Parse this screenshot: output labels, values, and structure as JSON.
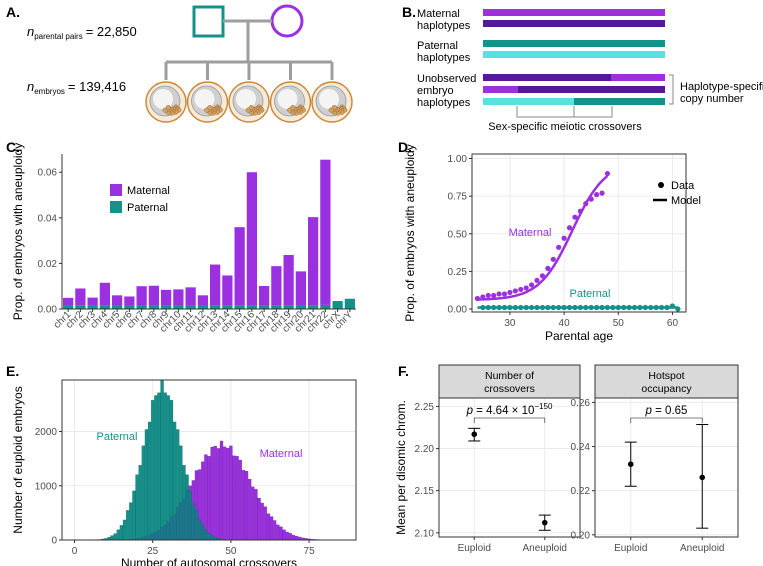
{
  "colors": {
    "maternal": "#9b30e0",
    "maternal_dark": "#55189a",
    "paternal": "#14918a",
    "paternal_light": "#58e1e1",
    "axis": "#333333",
    "grid": "#ebebeb",
    "facet": "#d9d9d9",
    "ped_line": "#9e9e9e"
  },
  "panelA": {
    "letter": "A.",
    "parental_pairs": {
      "n": "n",
      "sub": "parental pairs",
      "value": "= 22,850"
    },
    "embryos": {
      "n": "n",
      "sub": "embryos",
      "value": "= 139,416"
    },
    "embryo_count": 5
  },
  "panelB": {
    "letter": "B.",
    "maternal_label": [
      "Maternal",
      "haplotypes"
    ],
    "paternal_label": [
      "Paternal",
      "haplotypes"
    ],
    "embryo_label": [
      "Unobserved",
      "embryo",
      "haplotypes"
    ],
    "copy_number_label": [
      "Haplotype-specific",
      "copy number"
    ],
    "crossover_label": "Sex-specific meiotic crossovers"
  },
  "chart_data": [
    {
      "panel": "C.",
      "type": "bar",
      "ylabel": "Prop. of embryos with aneuploidy",
      "ylim": [
        0,
        0.068
      ],
      "yticks": [
        0.0,
        0.02,
        0.04,
        0.06
      ],
      "ytick_labels": [
        "0.00",
        "0.02",
        "0.04",
        "0.06"
      ],
      "legend": [
        "Maternal",
        "Paternal"
      ],
      "legend_position": "top-left",
      "categories": [
        "chr1",
        "chr2",
        "chr3",
        "chr4",
        "chr5",
        "chr6",
        "chr7",
        "chr8",
        "chr9",
        "chr10",
        "chr11",
        "chr12",
        "chr13",
        "chr14",
        "chr15",
        "chr16",
        "chr17",
        "chr18",
        "chr19",
        "chr20",
        "chr21",
        "chr22",
        "chrX",
        "chrY"
      ],
      "series": [
        {
          "name": "Paternal",
          "values": [
            0.0015,
            0.0016,
            0.0015,
            0.0016,
            0.0015,
            0.0015,
            0.0015,
            0.0015,
            0.0015,
            0.0015,
            0.0015,
            0.0015,
            0.0016,
            0.0016,
            0.0016,
            0.0017,
            0.0015,
            0.0016,
            0.0016,
            0.0015,
            0.0017,
            0.0018,
            0.0035,
            0.0045
          ]
        },
        {
          "name": "Maternal",
          "values": [
            0.0034,
            0.0074,
            0.0035,
            0.0099,
            0.0045,
            0.004,
            0.0085,
            0.0087,
            0.0069,
            0.0071,
            0.008,
            0.0045,
            0.0179,
            0.0131,
            0.0343,
            0.0583,
            0.0086,
            0.0172,
            0.0221,
            0.015,
            0.0386,
            0.0637,
            0.0,
            0.0
          ]
        }
      ]
    },
    {
      "panel": "D.",
      "type": "scatter",
      "xlabel": "Parental age",
      "ylabel": "Prop. of embryos with aneuploidy",
      "xlim": [
        23,
        62.5
      ],
      "ylim": [
        -0.02,
        1.03
      ],
      "xticks": [
        30,
        40,
        50,
        60
      ],
      "yticks": [
        0.0,
        0.25,
        0.5,
        0.75,
        1.0
      ],
      "ytick_labels": [
        "0.00",
        "0.25",
        "0.50",
        "0.75",
        "1.00"
      ],
      "legend": [
        "Data",
        "Model"
      ],
      "series_labels": [
        "Maternal",
        "Paternal"
      ],
      "maternal_points": [
        [
          24,
          0.07
        ],
        [
          25,
          0.08
        ],
        [
          26,
          0.09
        ],
        [
          27,
          0.09
        ],
        [
          28,
          0.1
        ],
        [
          29,
          0.1
        ],
        [
          30,
          0.11
        ],
        [
          31,
          0.12
        ],
        [
          32,
          0.13
        ],
        [
          33,
          0.14
        ],
        [
          34,
          0.16
        ],
        [
          35,
          0.19
        ],
        [
          36,
          0.22
        ],
        [
          37,
          0.27
        ],
        [
          38,
          0.33
        ],
        [
          39,
          0.41
        ],
        [
          40,
          0.47
        ],
        [
          41,
          0.54
        ],
        [
          42,
          0.61
        ],
        [
          43,
          0.65
        ],
        [
          44,
          0.7
        ],
        [
          45,
          0.73
        ],
        [
          46,
          0.76
        ],
        [
          47,
          0.77
        ],
        [
          48,
          0.9
        ]
      ],
      "maternal_model": {
        "L": 0.98,
        "k": 0.33,
        "x0": 41.5,
        "base": 0.06,
        "x_range": [
          24,
          48
        ]
      },
      "paternal_points": [
        [
          25,
          0.01
        ],
        [
          26,
          0.01
        ],
        [
          27,
          0.01
        ],
        [
          28,
          0.01
        ],
        [
          29,
          0.01
        ],
        [
          30,
          0.01
        ],
        [
          31,
          0.01
        ],
        [
          32,
          0.01
        ],
        [
          33,
          0.01
        ],
        [
          34,
          0.01
        ],
        [
          35,
          0.01
        ],
        [
          36,
          0.01
        ],
        [
          37,
          0.01
        ],
        [
          38,
          0.01
        ],
        [
          39,
          0.01
        ],
        [
          40,
          0.01
        ],
        [
          41,
          0.01
        ],
        [
          42,
          0.01
        ],
        [
          43,
          0.01
        ],
        [
          44,
          0.01
        ],
        [
          45,
          0.01
        ],
        [
          46,
          0.01
        ],
        [
          47,
          0.01
        ],
        [
          48,
          0.01
        ],
        [
          49,
          0.01
        ],
        [
          50,
          0.01
        ],
        [
          51,
          0.01
        ],
        [
          52,
          0.01
        ],
        [
          53,
          0.01
        ],
        [
          54,
          0.01
        ],
        [
          55,
          0.01
        ],
        [
          56,
          0.01
        ],
        [
          57,
          0.01
        ],
        [
          58,
          0.01
        ],
        [
          59,
          0.01
        ],
        [
          60,
          0.02
        ],
        [
          61,
          0.0
        ]
      ],
      "paternal_model": {
        "value": 0.01,
        "x_range": [
          24,
          61
        ]
      }
    },
    {
      "panel": "E.",
      "type": "histogram",
      "xlabel": "Number of autosomal crossovers",
      "ylabel": "Number of euploid embryos",
      "xlim": [
        -4,
        90
      ],
      "ylim": [
        0,
        2950
      ],
      "xticks": [
        0,
        25,
        50,
        75
      ],
      "yticks": [
        0,
        1000,
        2000
      ],
      "series_labels": [
        "Paternal",
        "Maternal"
      ],
      "paternal": {
        "mean": 28,
        "sd": 6,
        "peak": 2830,
        "range": [
          2,
          50
        ]
      },
      "maternal": {
        "mean": 47,
        "sd": 9.5,
        "peak": 1760,
        "range": [
          15,
          86
        ]
      }
    },
    {
      "panel": "F.",
      "type": "errorbar",
      "ylabel": "Mean per disomic chrom.",
      "categories": [
        "Euploid",
        "Aneuploid"
      ],
      "facets": [
        {
          "title": [
            "Number of",
            "crossovers"
          ],
          "p_value": {
            "prefix": "p = 4.64 × 10",
            "exponent": "−150"
          },
          "ylim": [
            2.095,
            2.26
          ],
          "yticks": [
            2.1,
            2.15,
            2.2,
            2.25
          ],
          "ytick_labels": [
            "2.10",
            "2.15",
            "2.20",
            "2.25"
          ],
          "points": [
            {
              "mean": 2.217,
              "lo": 2.209,
              "hi": 2.224
            },
            {
              "mean": 2.112,
              "lo": 2.103,
              "hi": 2.121
            }
          ]
        },
        {
          "title": [
            "Hotspot",
            "occupancy"
          ],
          "p_value": {
            "prefix": "p = 0.65",
            "exponent": ""
          },
          "ylim": [
            0.199,
            0.262
          ],
          "yticks": [
            0.2,
            0.22,
            0.24,
            0.26
          ],
          "ytick_labels": [
            "0.20",
            "0.22",
            "0.24",
            "0.26"
          ],
          "points": [
            {
              "mean": 0.232,
              "lo": 0.222,
              "hi": 0.242
            },
            {
              "mean": 0.226,
              "lo": 0.203,
              "hi": 0.25
            }
          ]
        }
      ]
    }
  ]
}
